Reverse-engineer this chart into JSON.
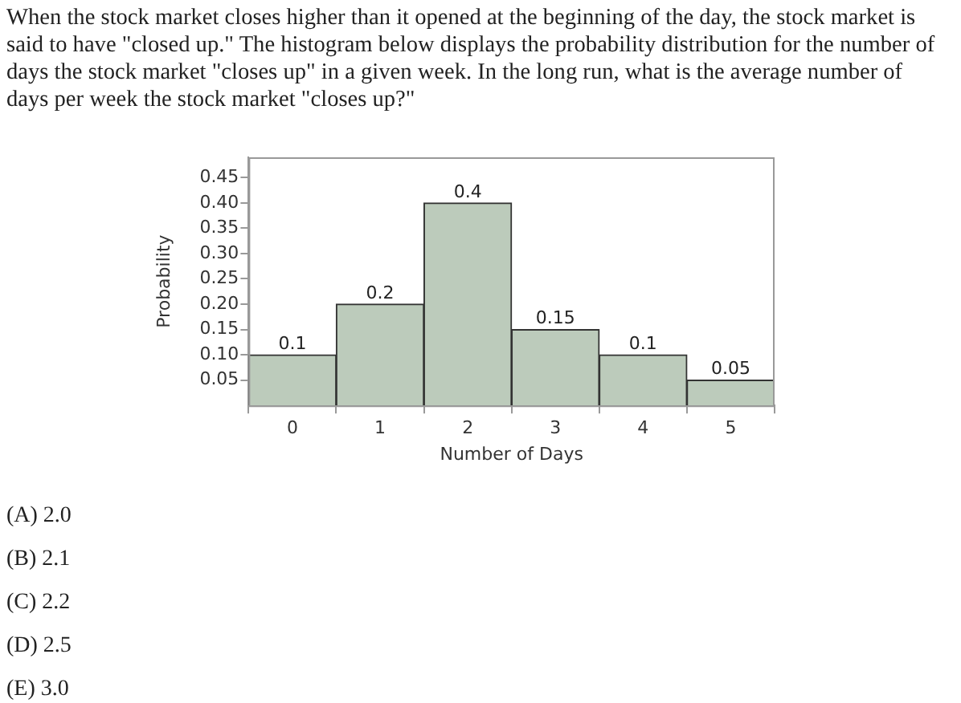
{
  "chart_data": {
    "type": "histogram",
    "title": "When the stock market closes higher than it opened at the beginning of the day, the stock market is said to have \"closed up.\" The histogram below displays the probability distribution for the number of days the stock market \"closes up\" in a given week. In the long run, what is the average number of days per week the stock market \"closes up?\"",
    "xlabel": "Number of Days",
    "ylabel": "Probability",
    "bins": [
      -0.5,
      0.5,
      1.5,
      2.5,
      3.5,
      4.5,
      5.5
    ],
    "values": [
      0.1,
      0.2,
      0.4,
      0.15,
      0.1,
      0.05
    ],
    "color": "#bccbbb",
    "xlim": [
      -0.5,
      5.5
    ],
    "xticks": [
      0,
      1,
      2,
      3,
      4,
      5
    ],
    "ylim": [
      0,
      0.49
    ],
    "yticks": [
      {
        "value": 0.05,
        "label": "0.05"
      },
      {
        "value": 0.1,
        "label": "0.10"
      },
      {
        "value": 0.15,
        "label": "0.15"
      },
      {
        "value": 0.2,
        "label": "0.20"
      },
      {
        "value": 0.25,
        "label": "0.25"
      },
      {
        "value": 0.3,
        "label": "0.30"
      },
      {
        "value": 0.35,
        "label": "0.35"
      },
      {
        "value": 0.4,
        "label": "0.40"
      },
      {
        "value": 0.45,
        "label": "0.45"
      }
    ],
    "grid": false,
    "legend": false,
    "data_labels": true,
    "annotations": [
      "(A) 2.0",
      "(B) 2.1",
      "(C) 2.2",
      "(D) 2.5",
      "(E) 3.0"
    ]
  }
}
